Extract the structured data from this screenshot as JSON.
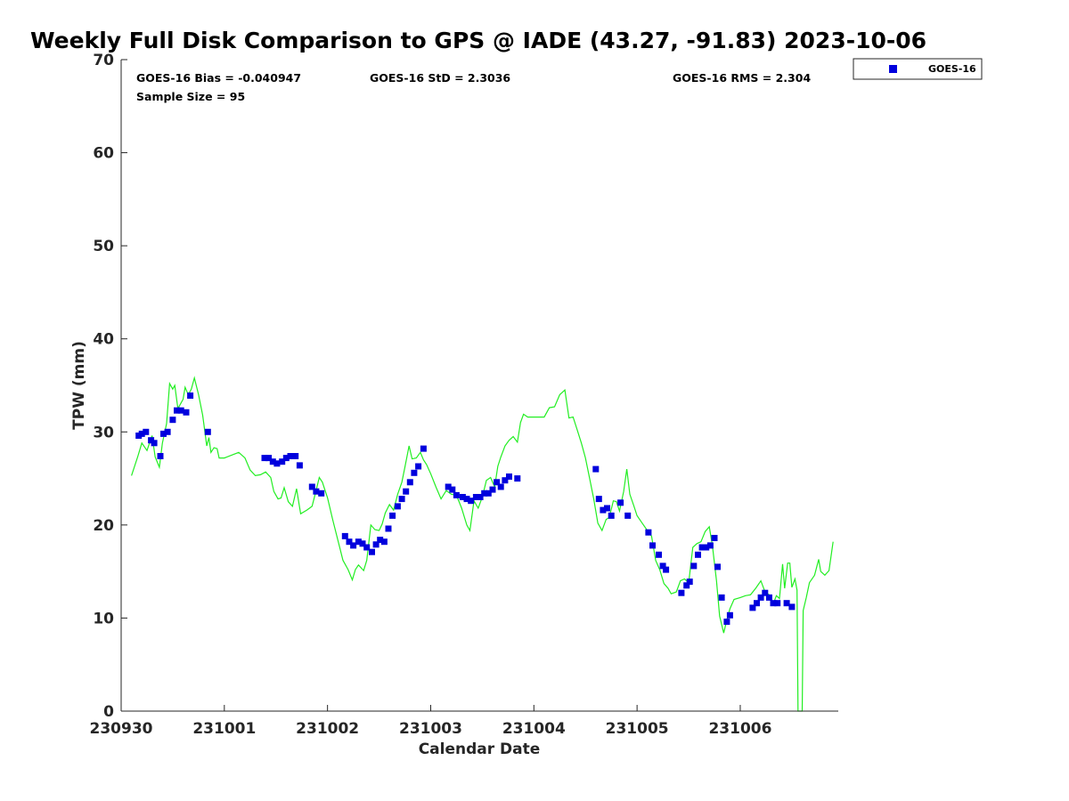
{
  "chart_data": {
    "type": "scatter",
    "title": "Weekly Full Disk Comparison to GPS @ IADE (43.27, -91.83) 2023-10-06",
    "xlabel": "Calendar Date",
    "ylabel": "TPW (mm)",
    "xlim": [
      0,
      6.95
    ],
    "ylim": [
      0,
      70
    ],
    "x_ticks": [
      {
        "label": "230930",
        "x": 0
      },
      {
        "label": "231001",
        "x": 1
      },
      {
        "label": "231002",
        "x": 2
      },
      {
        "label": "231003",
        "x": 3
      },
      {
        "label": "231004",
        "x": 4
      },
      {
        "label": "231005",
        "x": 5
      },
      {
        "label": "231006",
        "x": 6
      }
    ],
    "y_ticks": [
      0,
      10,
      20,
      30,
      40,
      50,
      60,
      70
    ],
    "grid": false,
    "legend": {
      "position": "top-right",
      "entries": [
        "GOES-16"
      ]
    },
    "stats": {
      "bias": "GOES-16 Bias = -0.040947",
      "std": "GOES-16 StD = 2.3036",
      "rms": "GOES-16 RMS = 2.304",
      "sample": "Sample Size = 95"
    },
    "series": [
      {
        "name": "GOES-16",
        "kind": "scatter",
        "color": "#0000dd",
        "points": [
          [
            0.17,
            29.6
          ],
          [
            0.2,
            29.8
          ],
          [
            0.24,
            30.0
          ],
          [
            0.29,
            29.1
          ],
          [
            0.32,
            28.8
          ],
          [
            0.38,
            27.4
          ],
          [
            0.41,
            29.8
          ],
          [
            0.45,
            30.0
          ],
          [
            0.5,
            31.3
          ],
          [
            0.54,
            32.3
          ],
          [
            0.58,
            32.3
          ],
          [
            0.63,
            32.1
          ],
          [
            0.67,
            33.9
          ],
          [
            0.84,
            30.0
          ],
          [
            1.39,
            27.2
          ],
          [
            1.43,
            27.2
          ],
          [
            1.47,
            26.8
          ],
          [
            1.51,
            26.6
          ],
          [
            1.56,
            26.8
          ],
          [
            1.6,
            27.2
          ],
          [
            1.64,
            27.4
          ],
          [
            1.69,
            27.4
          ],
          [
            1.73,
            26.4
          ],
          [
            1.85,
            24.1
          ],
          [
            1.89,
            23.6
          ],
          [
            1.94,
            23.4
          ],
          [
            2.17,
            18.8
          ],
          [
            2.21,
            18.2
          ],
          [
            2.25,
            17.8
          ],
          [
            2.3,
            18.2
          ],
          [
            2.34,
            18.0
          ],
          [
            2.38,
            17.6
          ],
          [
            2.43,
            17.1
          ],
          [
            2.47,
            17.9
          ],
          [
            2.51,
            18.4
          ],
          [
            2.55,
            18.2
          ],
          [
            2.59,
            19.6
          ],
          [
            2.63,
            21.0
          ],
          [
            2.68,
            22.0
          ],
          [
            2.72,
            22.8
          ],
          [
            2.76,
            23.6
          ],
          [
            2.8,
            24.6
          ],
          [
            2.84,
            25.6
          ],
          [
            2.88,
            26.3
          ],
          [
            2.93,
            28.2
          ],
          [
            3.17,
            24.1
          ],
          [
            3.21,
            23.8
          ],
          [
            3.25,
            23.2
          ],
          [
            3.31,
            23.0
          ],
          [
            3.35,
            22.8
          ],
          [
            3.39,
            22.6
          ],
          [
            3.44,
            23.0
          ],
          [
            3.48,
            23.0
          ],
          [
            3.52,
            23.4
          ],
          [
            3.56,
            23.4
          ],
          [
            3.6,
            23.8
          ],
          [
            3.64,
            24.6
          ],
          [
            3.68,
            24.1
          ],
          [
            3.72,
            24.8
          ],
          [
            3.76,
            25.2
          ],
          [
            3.84,
            25.0
          ],
          [
            4.6,
            26.0
          ],
          [
            4.63,
            22.8
          ],
          [
            4.67,
            21.6
          ],
          [
            4.71,
            21.8
          ],
          [
            4.75,
            21.0
          ],
          [
            4.84,
            22.4
          ],
          [
            4.91,
            21.0
          ],
          [
            5.11,
            19.2
          ],
          [
            5.15,
            17.8
          ],
          [
            5.21,
            16.8
          ],
          [
            5.25,
            15.6
          ],
          [
            5.28,
            15.2
          ],
          [
            5.43,
            12.7
          ],
          [
            5.48,
            13.5
          ],
          [
            5.51,
            13.9
          ],
          [
            5.55,
            15.6
          ],
          [
            5.59,
            16.8
          ],
          [
            5.63,
            17.6
          ],
          [
            5.67,
            17.6
          ],
          [
            5.71,
            17.8
          ],
          [
            5.75,
            18.6
          ],
          [
            5.78,
            15.5
          ],
          [
            5.82,
            12.2
          ],
          [
            5.87,
            9.6
          ],
          [
            5.9,
            10.3
          ],
          [
            6.12,
            11.1
          ],
          [
            6.16,
            11.6
          ],
          [
            6.2,
            12.2
          ],
          [
            6.24,
            12.7
          ],
          [
            6.28,
            12.2
          ],
          [
            6.32,
            11.6
          ],
          [
            6.36,
            11.6
          ],
          [
            6.45,
            11.6
          ],
          [
            6.5,
            11.2
          ]
        ]
      },
      {
        "name": "",
        "kind": "line",
        "color": "#22ee22",
        "points": [
          [
            0.1,
            25.3
          ],
          [
            0.16,
            27.3
          ],
          [
            0.2,
            28.8
          ],
          [
            0.25,
            28.0
          ],
          [
            0.3,
            29.6
          ],
          [
            0.33,
            27.3
          ],
          [
            0.37,
            26.2
          ],
          [
            0.4,
            28.8
          ],
          [
            0.44,
            30.9
          ],
          [
            0.47,
            35.2
          ],
          [
            0.5,
            34.6
          ],
          [
            0.52,
            35.0
          ],
          [
            0.55,
            32.5
          ],
          [
            0.6,
            33.5
          ],
          [
            0.62,
            34.8
          ],
          [
            0.65,
            34.0
          ],
          [
            0.68,
            34.6
          ],
          [
            0.71,
            35.8
          ],
          [
            0.75,
            34.0
          ],
          [
            0.79,
            31.8
          ],
          [
            0.83,
            28.5
          ],
          [
            0.85,
            29.4
          ],
          [
            0.87,
            27.8
          ],
          [
            0.9,
            28.3
          ],
          [
            0.93,
            28.2
          ],
          [
            0.95,
            27.2
          ],
          [
            1.0,
            27.2
          ],
          [
            1.07,
            27.5
          ],
          [
            1.14,
            27.8
          ],
          [
            1.2,
            27.2
          ],
          [
            1.25,
            25.9
          ],
          [
            1.3,
            25.3
          ],
          [
            1.35,
            25.4
          ],
          [
            1.4,
            25.7
          ],
          [
            1.45,
            25.1
          ],
          [
            1.48,
            23.6
          ],
          [
            1.52,
            22.8
          ],
          [
            1.55,
            22.9
          ],
          [
            1.58,
            24.0
          ],
          [
            1.62,
            22.5
          ],
          [
            1.66,
            22.0
          ],
          [
            1.7,
            23.9
          ],
          [
            1.74,
            21.2
          ],
          [
            1.8,
            21.6
          ],
          [
            1.85,
            22.0
          ],
          [
            1.88,
            23.3
          ],
          [
            1.92,
            25.1
          ],
          [
            1.95,
            24.6
          ],
          [
            2.0,
            22.9
          ],
          [
            2.05,
            20.6
          ],
          [
            2.1,
            18.4
          ],
          [
            2.15,
            16.2
          ],
          [
            2.2,
            15.2
          ],
          [
            2.24,
            14.1
          ],
          [
            2.27,
            15.2
          ],
          [
            2.3,
            15.7
          ],
          [
            2.35,
            15.1
          ],
          [
            2.38,
            16.2
          ],
          [
            2.42,
            20.0
          ],
          [
            2.46,
            19.5
          ],
          [
            2.5,
            19.4
          ],
          [
            2.53,
            20.1
          ],
          [
            2.56,
            21.3
          ],
          [
            2.6,
            22.2
          ],
          [
            2.64,
            21.6
          ],
          [
            2.68,
            23.3
          ],
          [
            2.72,
            24.6
          ],
          [
            2.75,
            26.2
          ],
          [
            2.79,
            28.5
          ],
          [
            2.82,
            27.1
          ],
          [
            2.86,
            27.2
          ],
          [
            2.9,
            27.8
          ],
          [
            2.93,
            27.0
          ],
          [
            2.96,
            26.5
          ],
          [
            3.0,
            25.5
          ],
          [
            3.05,
            24.1
          ],
          [
            3.1,
            22.8
          ],
          [
            3.15,
            23.7
          ],
          [
            3.2,
            23.3
          ],
          [
            3.25,
            23.2
          ],
          [
            3.3,
            21.8
          ],
          [
            3.35,
            20.0
          ],
          [
            3.38,
            19.4
          ],
          [
            3.42,
            22.6
          ],
          [
            3.46,
            21.8
          ],
          [
            3.5,
            23.0
          ],
          [
            3.54,
            24.8
          ],
          [
            3.58,
            25.1
          ],
          [
            3.62,
            24.1
          ],
          [
            3.65,
            26.3
          ],
          [
            3.68,
            27.3
          ],
          [
            3.72,
            28.5
          ],
          [
            3.76,
            29.1
          ],
          [
            3.8,
            29.5
          ],
          [
            3.84,
            28.9
          ],
          [
            3.87,
            31.0
          ],
          [
            3.9,
            31.9
          ],
          [
            3.94,
            31.6
          ],
          [
            4.0,
            31.6
          ],
          [
            4.1,
            31.6
          ],
          [
            4.15,
            32.6
          ],
          [
            4.2,
            32.7
          ],
          [
            4.25,
            34.0
          ],
          [
            4.3,
            34.5
          ],
          [
            4.34,
            31.5
          ],
          [
            4.38,
            31.6
          ],
          [
            4.42,
            30.2
          ],
          [
            4.46,
            28.8
          ],
          [
            4.5,
            27.2
          ],
          [
            4.54,
            25.0
          ],
          [
            4.58,
            22.8
          ],
          [
            4.62,
            20.2
          ],
          [
            4.66,
            19.4
          ],
          [
            4.7,
            20.6
          ],
          [
            4.73,
            20.8
          ],
          [
            4.77,
            22.6
          ],
          [
            4.8,
            22.5
          ],
          [
            4.83,
            21.5
          ],
          [
            4.87,
            23.6
          ],
          [
            4.9,
            26.0
          ],
          [
            4.93,
            23.3
          ],
          [
            4.97,
            22.0
          ],
          [
            5.0,
            21.0
          ],
          [
            5.05,
            20.2
          ],
          [
            5.1,
            19.4
          ],
          [
            5.14,
            18.8
          ],
          [
            5.18,
            16.2
          ],
          [
            5.22,
            15.2
          ],
          [
            5.26,
            13.7
          ],
          [
            5.3,
            13.2
          ],
          [
            5.33,
            12.6
          ],
          [
            5.38,
            12.8
          ],
          [
            5.42,
            14.0
          ],
          [
            5.46,
            14.2
          ],
          [
            5.5,
            13.8
          ],
          [
            5.54,
            17.6
          ],
          [
            5.58,
            18.0
          ],
          [
            5.62,
            18.2
          ],
          [
            5.66,
            19.3
          ],
          [
            5.7,
            19.8
          ],
          [
            5.73,
            17.8
          ],
          [
            5.77,
            14.0
          ],
          [
            5.8,
            10.2
          ],
          [
            5.84,
            8.4
          ],
          [
            5.87,
            9.8
          ],
          [
            5.9,
            11.0
          ],
          [
            5.94,
            12.0
          ],
          [
            6.0,
            12.2
          ],
          [
            6.05,
            12.4
          ],
          [
            6.1,
            12.5
          ],
          [
            6.15,
            13.2
          ],
          [
            6.2,
            14.0
          ],
          [
            6.24,
            12.8
          ],
          [
            6.28,
            12.5
          ],
          [
            6.32,
            11.5
          ],
          [
            6.35,
            12.4
          ],
          [
            6.38,
            12.1
          ],
          [
            6.41,
            15.8
          ],
          [
            6.43,
            13.2
          ],
          [
            6.46,
            15.9
          ],
          [
            6.48,
            15.9
          ],
          [
            6.5,
            13.3
          ],
          [
            6.53,
            14.2
          ],
          [
            6.55,
            13.0
          ],
          [
            6.56,
            0.0
          ],
          [
            6.6,
            0.0
          ],
          [
            6.61,
            10.8
          ],
          [
            6.64,
            12.2
          ],
          [
            6.67,
            13.8
          ],
          [
            6.72,
            14.6
          ],
          [
            6.76,
            16.3
          ],
          [
            6.78,
            15.0
          ],
          [
            6.82,
            14.6
          ],
          [
            6.86,
            15.1
          ],
          [
            6.9,
            18.2
          ]
        ]
      }
    ]
  }
}
